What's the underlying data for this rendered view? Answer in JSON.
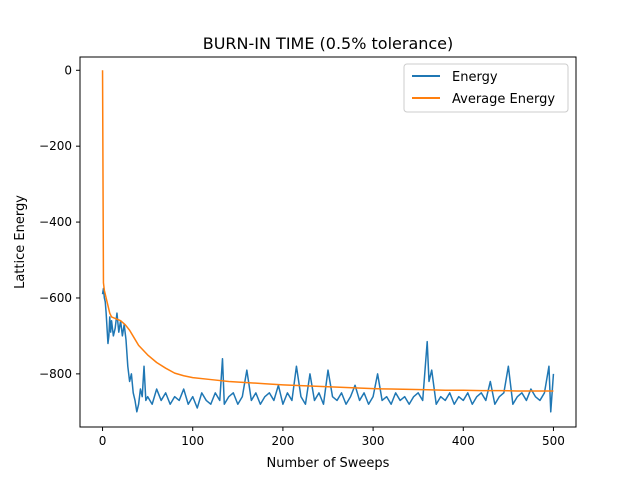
{
  "chart_data": {
    "type": "line",
    "title": "BURN-IN TIME (0.5% tolerance)",
    "xlabel": "Number of Sweeps",
    "ylabel": "Lattice Energy",
    "xlim": [
      -25,
      525
    ],
    "ylim": [
      -940,
      35
    ],
    "xticks": [
      0,
      100,
      200,
      300,
      400,
      500
    ],
    "yticks": [
      0,
      -200,
      -400,
      -600,
      -800
    ],
    "grid": false,
    "legend_position": "top-right",
    "series": [
      {
        "name": "Energy",
        "color": "#1f77b4",
        "x": [
          0,
          1,
          2,
          3,
          4,
          5,
          6,
          7,
          8,
          9,
          10,
          12,
          14,
          16,
          18,
          20,
          22,
          24,
          26,
          28,
          30,
          32,
          34,
          36,
          38,
          40,
          42,
          44,
          46,
          48,
          50,
          55,
          60,
          65,
          70,
          75,
          80,
          85,
          90,
          95,
          100,
          105,
          110,
          115,
          120,
          125,
          130,
          133,
          135,
          140,
          145,
          150,
          155,
          160,
          165,
          170,
          175,
          180,
          185,
          190,
          195,
          200,
          205,
          210,
          215,
          220,
          225,
          230,
          235,
          240,
          245,
          250,
          255,
          260,
          265,
          270,
          275,
          280,
          285,
          290,
          295,
          300,
          305,
          310,
          315,
          320,
          325,
          330,
          335,
          340,
          345,
          350,
          355,
          360,
          362,
          365,
          370,
          375,
          380,
          385,
          390,
          395,
          400,
          405,
          410,
          415,
          420,
          425,
          430,
          435,
          440,
          445,
          450,
          455,
          460,
          465,
          470,
          475,
          480,
          485,
          490,
          495,
          497,
          500
        ],
        "y": [
          -590,
          -575,
          -600,
          -610,
          -640,
          -680,
          -720,
          -700,
          -650,
          -690,
          -660,
          -700,
          -680,
          -640,
          -690,
          -660,
          -700,
          -670,
          -710,
          -780,
          -820,
          -800,
          -850,
          -870,
          -900,
          -880,
          -840,
          -860,
          -780,
          -870,
          -860,
          -880,
          -840,
          -870,
          -850,
          -880,
          -860,
          -870,
          -840,
          -880,
          -860,
          -890,
          -850,
          -870,
          -880,
          -850,
          -870,
          -760,
          -880,
          -860,
          -850,
          -880,
          -860,
          -790,
          -870,
          -850,
          -880,
          -860,
          -850,
          -870,
          -830,
          -880,
          -850,
          -870,
          -780,
          -860,
          -880,
          -800,
          -870,
          -850,
          -880,
          -790,
          -860,
          -870,
          -850,
          -880,
          -860,
          -830,
          -870,
          -850,
          -880,
          -860,
          -800,
          -870,
          -860,
          -880,
          -850,
          -870,
          -860,
          -880,
          -860,
          -850,
          -870,
          -715,
          -820,
          -790,
          -880,
          -860,
          -870,
          -850,
          -880,
          -860,
          -870,
          -850,
          -880,
          -860,
          -850,
          -870,
          -820,
          -880,
          -860,
          -850,
          -780,
          -880,
          -860,
          -850,
          -870,
          -840,
          -860,
          -870,
          -850,
          -780,
          -900,
          -800
        ]
      },
      {
        "name": "Average Energy",
        "color": "#ff7f0e",
        "x": [
          0,
          1,
          2,
          3,
          5,
          8,
          10,
          15,
          20,
          25,
          30,
          35,
          40,
          50,
          60,
          70,
          80,
          90,
          100,
          120,
          140,
          160,
          180,
          200,
          220,
          240,
          260,
          280,
          300,
          320,
          340,
          360,
          380,
          400,
          420,
          440,
          460,
          480,
          500
        ],
        "y": [
          0,
          -560,
          -580,
          -590,
          -610,
          -640,
          -650,
          -655,
          -660,
          -670,
          -685,
          -705,
          -725,
          -750,
          -770,
          -785,
          -798,
          -805,
          -810,
          -815,
          -820,
          -823,
          -826,
          -829,
          -831,
          -833,
          -835,
          -837,
          -839,
          -840,
          -841,
          -842,
          -843,
          -843,
          -844,
          -844,
          -845,
          -845,
          -845
        ]
      }
    ]
  }
}
